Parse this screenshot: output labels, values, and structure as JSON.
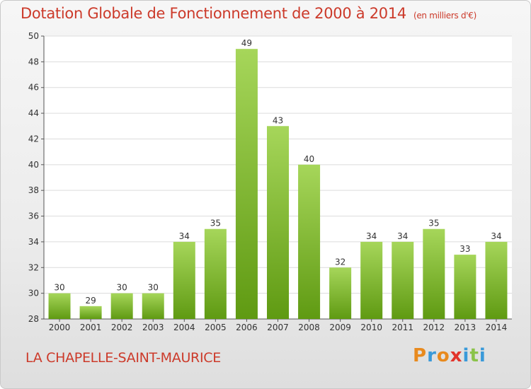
{
  "title": "Dotation Globale de Fonctionnement de 2000 à 2014",
  "title_unit": "(en milliers d'€)",
  "commune": "LA CHAPELLE-SAINT-MAURICE",
  "logo": {
    "letters": [
      "P",
      "r",
      "o",
      "x",
      "i",
      "t",
      "i"
    ],
    "colors": [
      "#e88a1e",
      "#3a9ad9",
      "#e88a1e",
      "#e2342b",
      "#3a9ad9",
      "#8bc34a",
      "#3a9ad9"
    ]
  },
  "colors": {
    "bar_light": "#a6d65a",
    "bar_dark": "#5f9a12",
    "title": "#cc3a2a"
  },
  "chart_data": {
    "type": "bar",
    "categories": [
      "2000",
      "2001",
      "2002",
      "2003",
      "2004",
      "2005",
      "2006",
      "2007",
      "2008",
      "2009",
      "2010",
      "2011",
      "2012",
      "2013",
      "2014"
    ],
    "values": [
      30,
      29,
      30,
      30,
      34,
      35,
      49,
      43,
      40,
      32,
      34,
      34,
      35,
      33,
      34
    ],
    "ylim": [
      28,
      50
    ],
    "yticks": [
      28,
      30,
      32,
      34,
      36,
      38,
      40,
      42,
      44,
      46,
      48,
      50
    ],
    "grid": true
  }
}
